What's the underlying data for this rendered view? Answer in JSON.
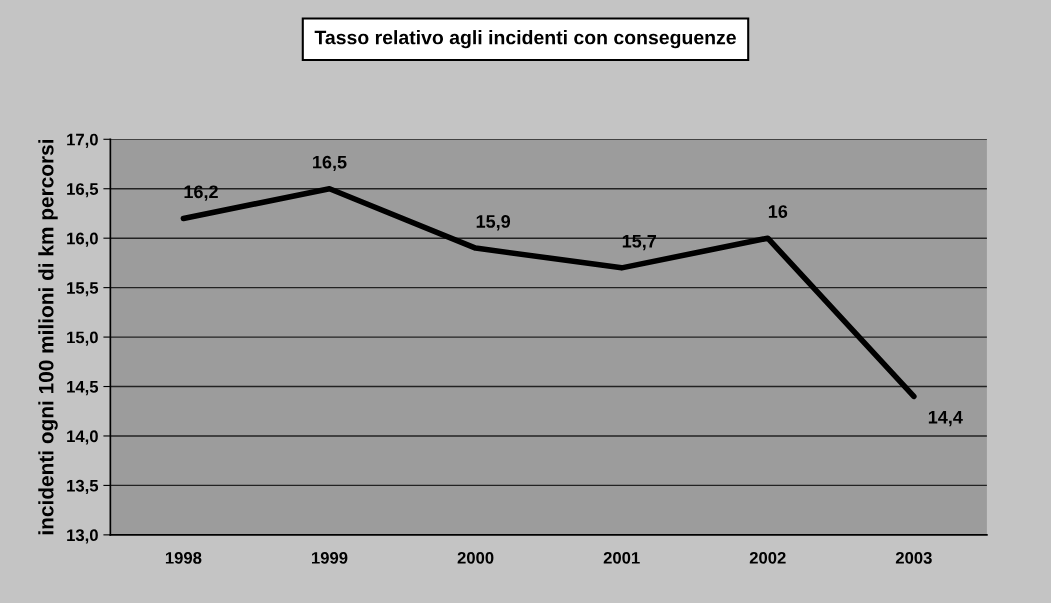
{
  "chart_data": {
    "type": "line",
    "title": "Tasso relativo agli incidenti con conseguenze",
    "ylabel": "incidenti ogni 100 milioni di km percorsi",
    "categories": [
      "1998",
      "1999",
      "2000",
      "2001",
      "2002",
      "2003"
    ],
    "series": [
      {
        "color": "#000000",
        "values": [
          16.2,
          16.5,
          15.9,
          15.7,
          16,
          14.4
        ],
        "value_labels": [
          "16,2",
          "16,5",
          "15,9",
          "15,7",
          "16",
          "14,4"
        ]
      }
    ],
    "ylim": [
      13,
      17
    ],
    "yticks": [
      {
        "value": 13,
        "label": "13,0"
      },
      {
        "value": 13.5,
        "label": "13,5"
      },
      {
        "value": 14,
        "label": "14,0"
      },
      {
        "value": 14.5,
        "label": "14,5"
      },
      {
        "value": 15,
        "label": "15,0"
      },
      {
        "value": 15.5,
        "label": "15,5"
      },
      {
        "value": 16,
        "label": "16,0"
      },
      {
        "value": 16.5,
        "label": "16,5"
      },
      {
        "value": 17,
        "label": "17,0"
      }
    ],
    "grid": "y",
    "line_style": "solid"
  }
}
